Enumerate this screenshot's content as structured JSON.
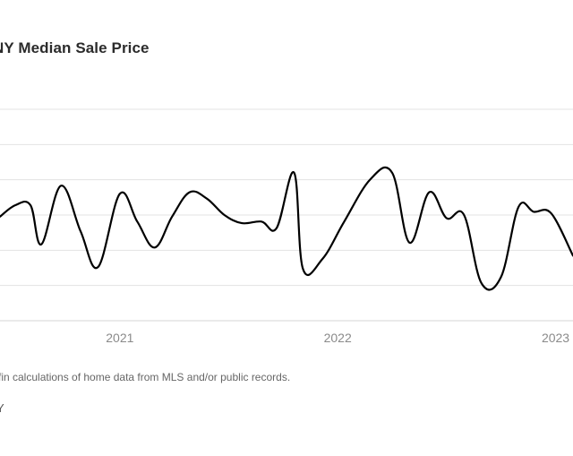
{
  "title": "NY Median Sale Price",
  "footnote": "fin calculations of home data from MLS and/or public records.",
  "location": "Y",
  "chart_data": {
    "type": "line",
    "title": "NY Median Sale Price",
    "xlabel": "",
    "ylabel": "",
    "x_ticks": [
      "2021",
      "2022",
      "2023"
    ],
    "x_range": [
      2020.45,
      2023.08
    ],
    "y_range": [
      0,
      6.5
    ],
    "grid": "horizontal",
    "legend": "none",
    "series": [
      {
        "color": "#000000",
        "points": [
          [
            2020.45,
            3.2
          ],
          [
            2020.52,
            3.55
          ],
          [
            2020.59,
            3.55
          ],
          [
            2020.64,
            2.35
          ],
          [
            2020.73,
            4.15
          ],
          [
            2020.82,
            2.75
          ],
          [
            2020.9,
            1.65
          ],
          [
            2021.0,
            3.9
          ],
          [
            2021.08,
            3.05
          ],
          [
            2021.16,
            2.25
          ],
          [
            2021.24,
            3.2
          ],
          [
            2021.32,
            3.95
          ],
          [
            2021.4,
            3.75
          ],
          [
            2021.48,
            3.25
          ],
          [
            2021.56,
            3.0
          ],
          [
            2021.65,
            3.05
          ],
          [
            2021.72,
            2.85
          ],
          [
            2021.8,
            4.55
          ],
          [
            2021.84,
            1.6
          ],
          [
            2021.93,
            1.9
          ],
          [
            2022.03,
            3.05
          ],
          [
            2022.15,
            4.35
          ],
          [
            2022.25,
            4.55
          ],
          [
            2022.33,
            2.4
          ],
          [
            2022.42,
            3.95
          ],
          [
            2022.5,
            3.15
          ],
          [
            2022.58,
            3.25
          ],
          [
            2022.66,
            1.15
          ],
          [
            2022.75,
            1.35
          ],
          [
            2022.83,
            3.5
          ],
          [
            2022.9,
            3.35
          ],
          [
            2022.98,
            3.3
          ],
          [
            2023.08,
            2.0
          ]
        ]
      }
    ]
  }
}
